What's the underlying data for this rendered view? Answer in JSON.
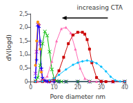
{
  "chart_data": {
    "type": "line",
    "title": "increasing CTA",
    "xlabel": "Pore diameter nm",
    "ylabel": "dV(logd)",
    "xlim": [
      0,
      40
    ],
    "xticks": [
      0,
      10,
      20,
      30,
      40
    ],
    "ylim": [
      0,
      2.5
    ],
    "yticks": [
      0,
      {
        "value": 0.5,
        "label": "0,5"
      },
      {
        "value": 1.0,
        "label": "1,0"
      },
      {
        "value": 1.5,
        "label": "1,5"
      },
      {
        "value": 2.0,
        "label": "2,0"
      },
      {
        "value": 2.5,
        "label": "2,5"
      }
    ],
    "grid": false,
    "series": [
      {
        "color": "#FF8C00",
        "marker": "circle",
        "x": [
          2,
          2.5,
          3,
          3.5,
          4,
          4.5,
          5,
          6,
          7,
          8,
          10,
          12,
          15,
          20,
          25,
          30,
          35,
          40
        ],
        "values": [
          0.6,
          1.5,
          2.2,
          2.1,
          1.2,
          0.35,
          0.08,
          0.02,
          0.01,
          0.0,
          0.0,
          0.0,
          0.0,
          0.0,
          0.0,
          0.0,
          0.0,
          0.0
        ]
      },
      {
        "color": "#9400D3",
        "marker": "x",
        "x": [
          2,
          2.5,
          3,
          3.5,
          4,
          4.5,
          5,
          6,
          7,
          8,
          10,
          12,
          15,
          20,
          25,
          30,
          35,
          40
        ],
        "values": [
          0.3,
          1.1,
          2.1,
          2.05,
          1.4,
          0.45,
          0.12,
          0.03,
          0.01,
          0.0,
          0.0,
          0.0,
          0.0,
          0.0,
          0.0,
          0.0,
          0.0,
          0.0
        ]
      },
      {
        "color": "#0000FF",
        "marker": "plus",
        "x": [
          2,
          2.5,
          3,
          3.5,
          4,
          4.5,
          5,
          6,
          7,
          8,
          10,
          12,
          15,
          20,
          25,
          30,
          35,
          40
        ],
        "values": [
          0.15,
          0.8,
          2.05,
          2.0,
          1.5,
          0.5,
          0.14,
          0.04,
          0.01,
          0.0,
          0.0,
          0.0,
          0.0,
          0.0,
          0.0,
          0.0,
          0.0,
          0.0
        ]
      },
      {
        "color": "#00BB00",
        "marker": "x",
        "x": [
          2,
          3,
          4,
          5,
          6,
          7,
          8,
          9,
          10,
          11,
          12,
          13,
          15,
          20,
          25,
          30,
          40
        ],
        "values": [
          0.02,
          0.15,
          0.6,
          1.4,
          1.85,
          1.7,
          1.1,
          0.45,
          0.1,
          0.03,
          0.01,
          0.0,
          0.0,
          0.0,
          0.0,
          0.0,
          0.0
        ]
      },
      {
        "color": "#FF69B4",
        "marker": "triangle",
        "x": [
          2,
          3,
          5,
          7,
          9,
          11,
          13,
          15,
          17,
          19,
          21,
          23,
          25,
          28,
          30,
          35,
          40
        ],
        "values": [
          0.0,
          0.01,
          0.04,
          0.2,
          0.75,
          1.5,
          1.95,
          2.0,
          1.8,
          1.2,
          0.5,
          0.12,
          0.02,
          0.0,
          0.0,
          0.0,
          0.0
        ]
      },
      {
        "color": "#CC0000",
        "marker": "square",
        "x": [
          2,
          5,
          8,
          10,
          12,
          14,
          16,
          18,
          20,
          22,
          23,
          24,
          25,
          26,
          28,
          30,
          32,
          35,
          40
        ],
        "values": [
          0.0,
          0.0,
          0.03,
          0.1,
          0.4,
          0.9,
          1.4,
          1.72,
          1.82,
          1.82,
          1.75,
          1.55,
          1.2,
          0.7,
          0.15,
          0.01,
          0.0,
          0.0,
          0.0
        ]
      },
      {
        "color": "#00BFFF",
        "marker": "diamond",
        "x": [
          2,
          5,
          8,
          10,
          12,
          15,
          18,
          20,
          22,
          24,
          26,
          28,
          30,
          32,
          34,
          36,
          38,
          40
        ],
        "values": [
          0.0,
          0.01,
          0.05,
          0.12,
          0.25,
          0.45,
          0.62,
          0.7,
          0.75,
          0.78,
          0.75,
          0.68,
          0.55,
          0.38,
          0.18,
          0.05,
          0.01,
          0.0
        ]
      }
    ]
  }
}
